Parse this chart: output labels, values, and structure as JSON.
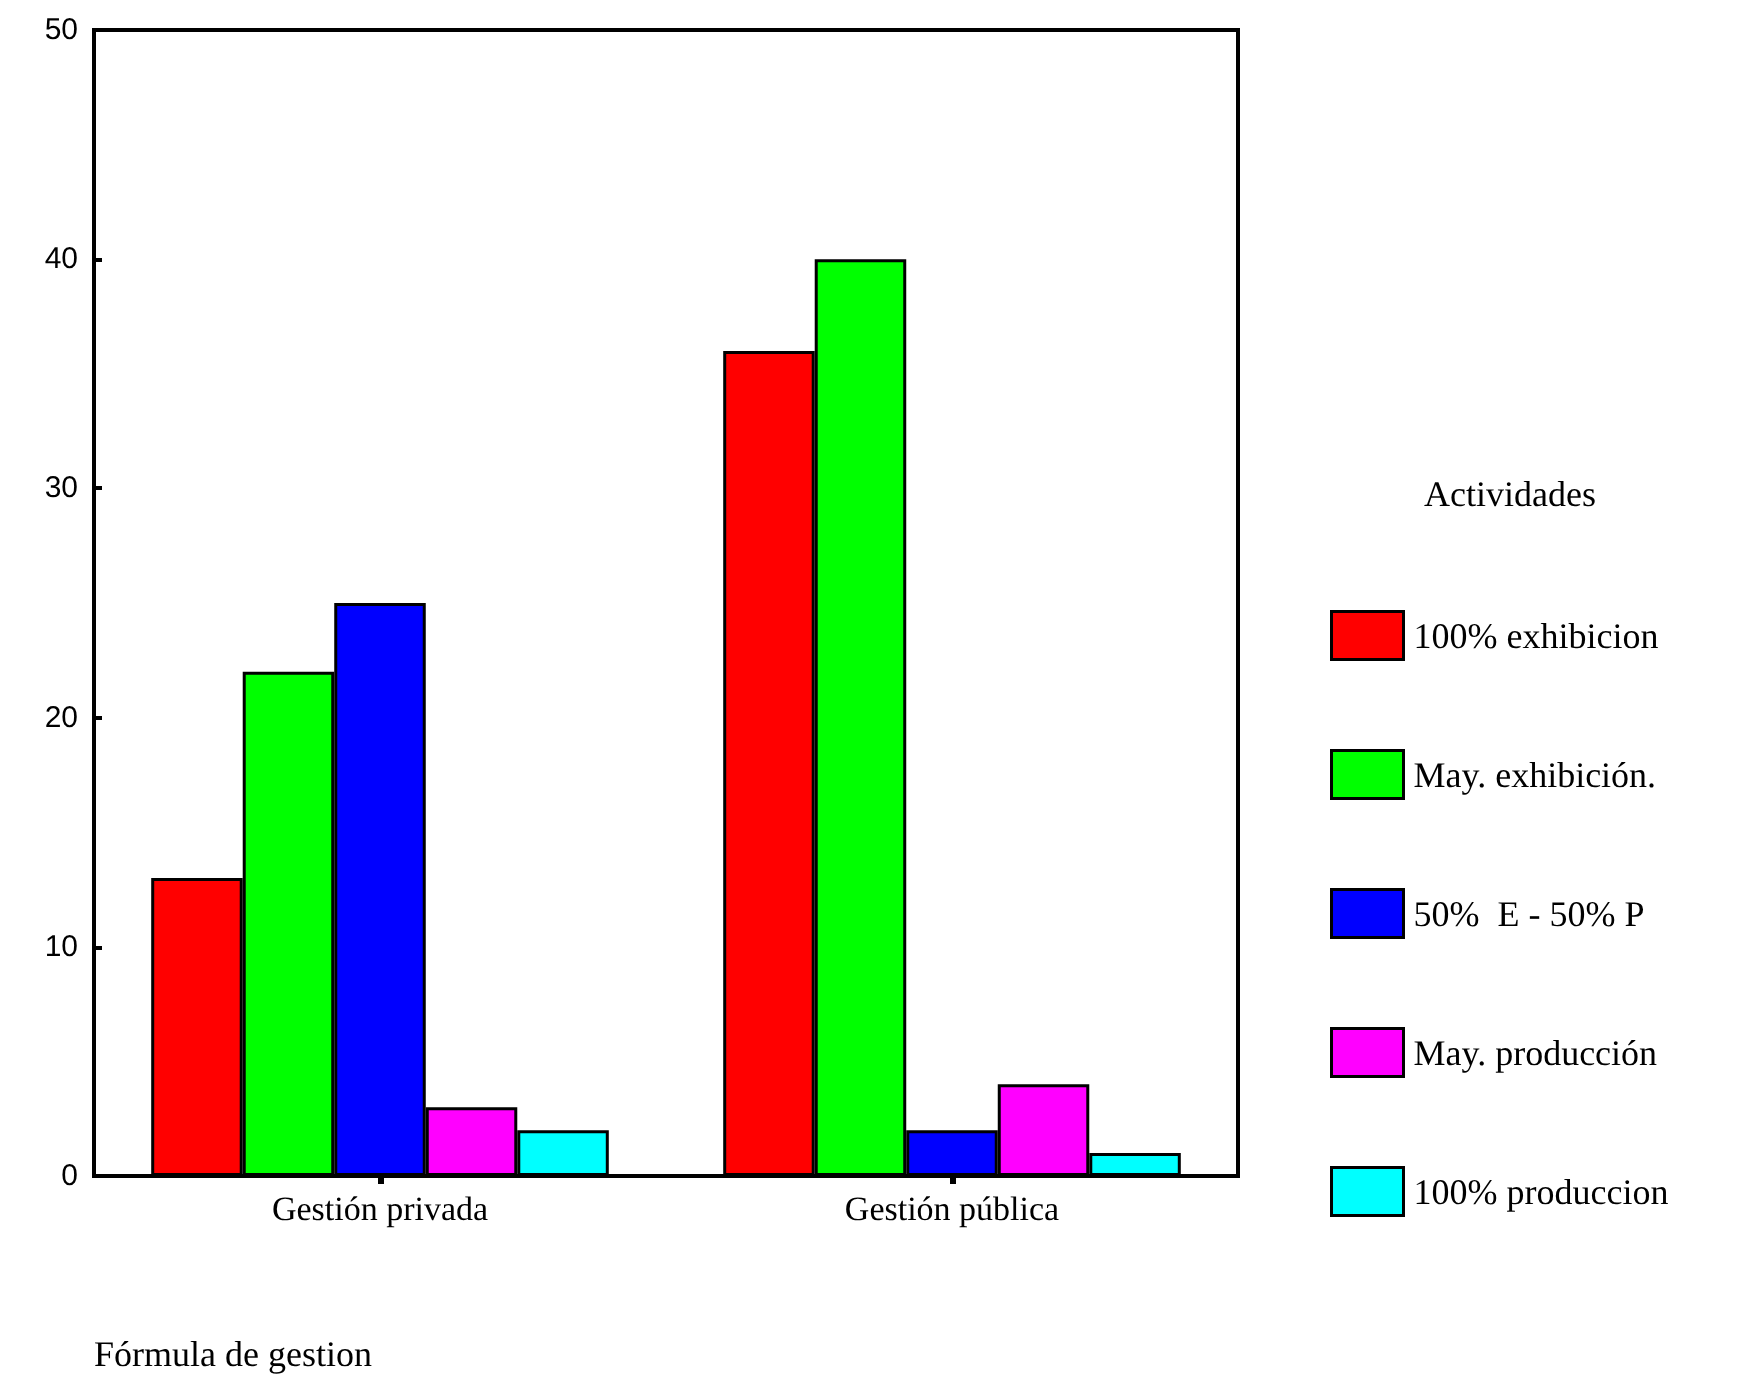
{
  "chart_data": {
    "type": "bar",
    "xlabel": "Fórmula de gestion",
    "legend_title": "Actividades",
    "categories": [
      "Gestión privada",
      "Gestión pública"
    ],
    "series": [
      {
        "name": "100% exhibicion",
        "color": "#ff0000",
        "values": [
          13,
          36
        ]
      },
      {
        "name": "May. exhibición.",
        "color": "#00ff00",
        "values": [
          22,
          40
        ]
      },
      {
        "name": "50%  E - 50% P",
        "color": "#0000ff",
        "values": [
          25,
          2
        ]
      },
      {
        "name": "May. producción",
        "color": "#ff00ff",
        "values": [
          3,
          4
        ]
      },
      {
        "name": "100% produccion",
        "color": "#00ffff",
        "values": [
          2,
          1
        ]
      }
    ],
    "ylim": [
      0,
      50
    ],
    "yticks": [
      0,
      10,
      20,
      30,
      40,
      50
    ],
    "grid": false,
    "legend": "right"
  }
}
